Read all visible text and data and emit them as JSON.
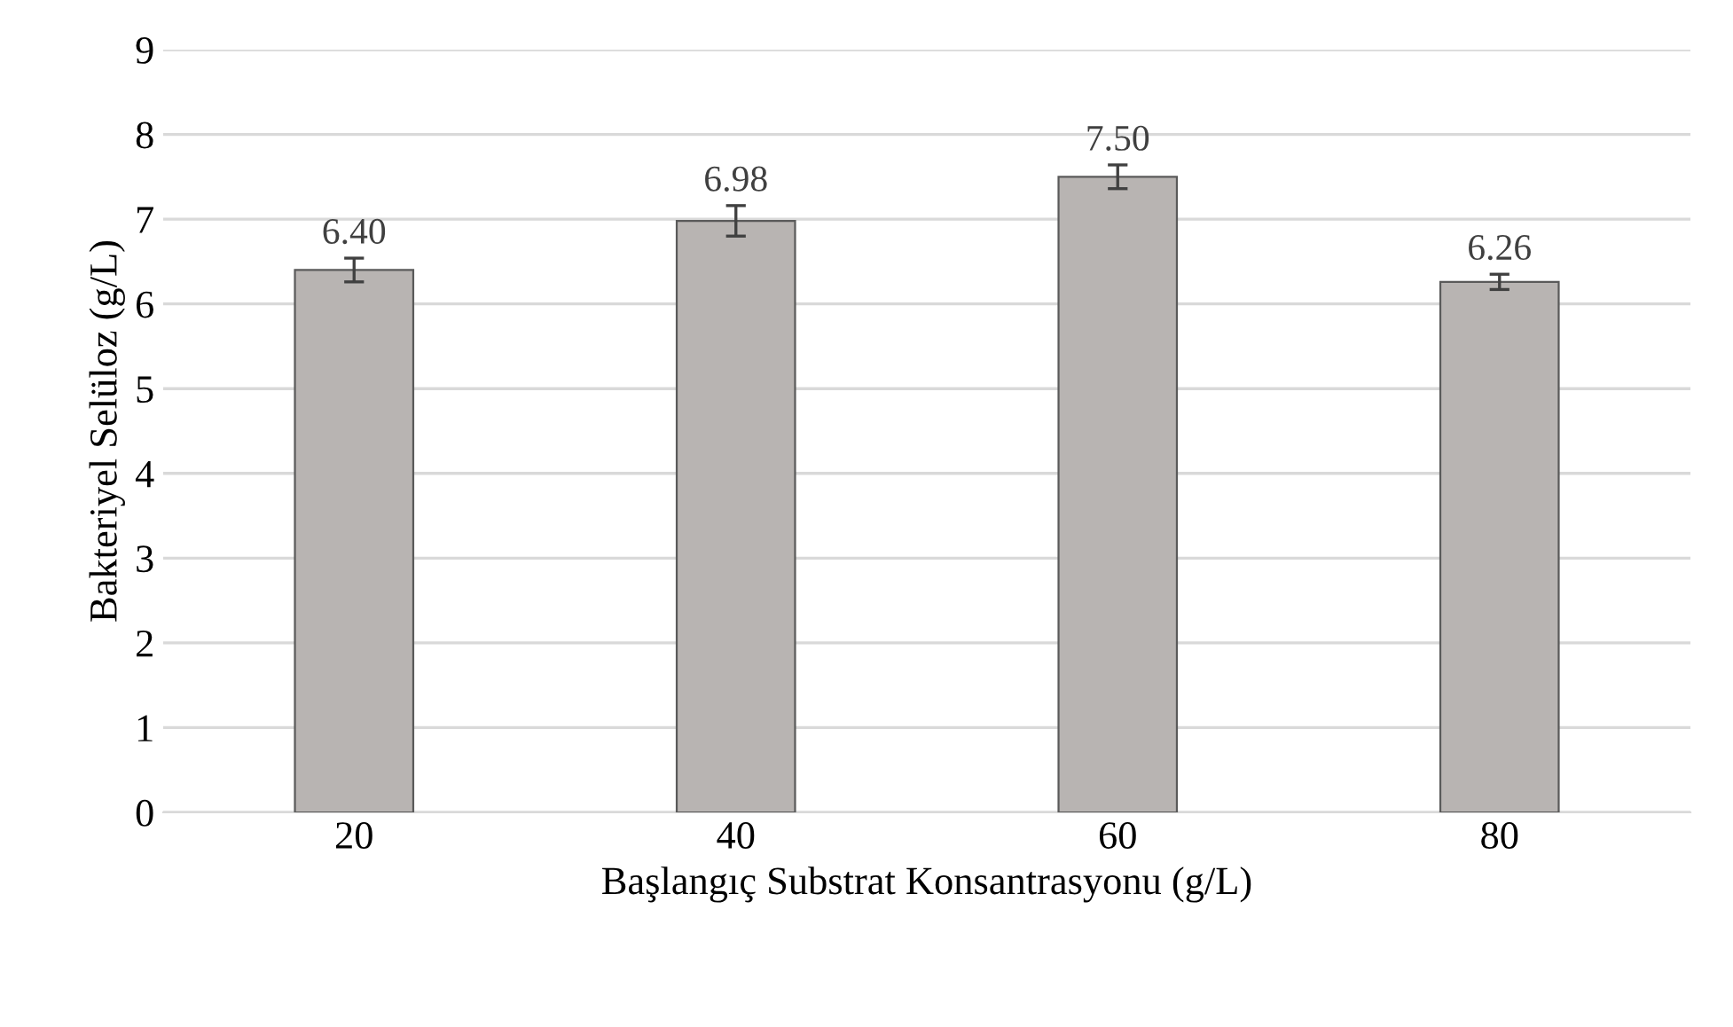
{
  "chart_data": {
    "type": "bar",
    "xlabel": "Başlangıç Substrat Konsantrasyonu (g/L)",
    "ylabel": "Bakteriyel Selüloz (g/L)",
    "categories": [
      "20",
      "40",
      "60",
      "80"
    ],
    "values": [
      6.4,
      6.98,
      7.5,
      6.26
    ],
    "errors": [
      0.14,
      0.18,
      0.14,
      0.09
    ],
    "value_labels": [
      "6.40",
      "6.98",
      "7.50",
      "6.26"
    ],
    "color": "#b8b4b2",
    "ylim": [
      0,
      9
    ],
    "yticks": [
      0,
      1,
      2,
      3,
      4,
      5,
      6,
      7,
      8,
      9
    ],
    "grid": "y",
    "legend": false
  }
}
